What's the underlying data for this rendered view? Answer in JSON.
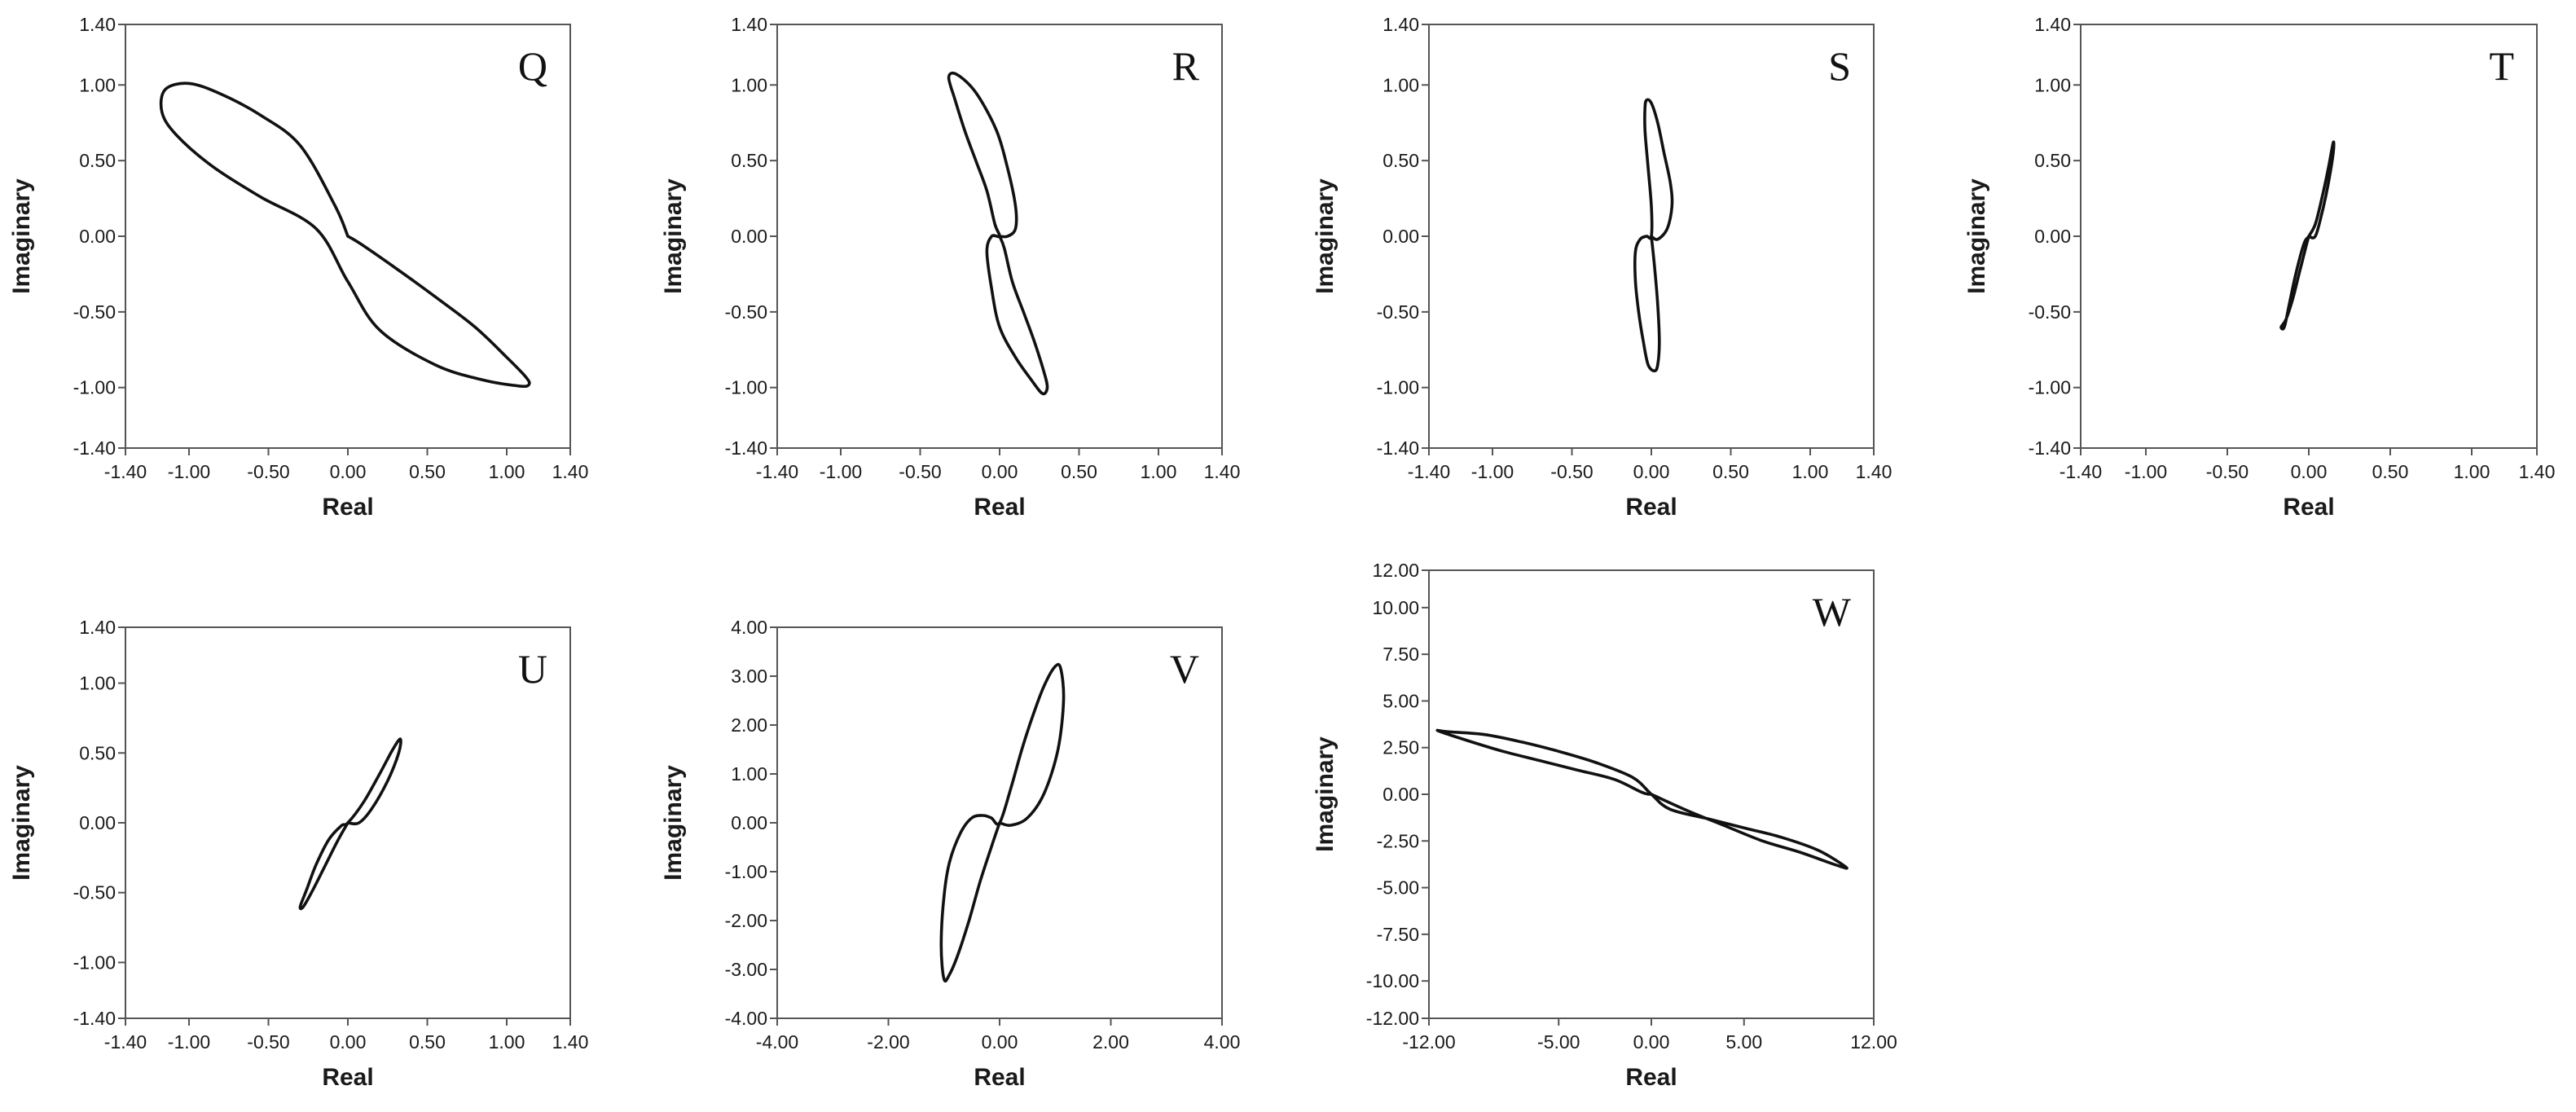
{
  "figure": {
    "colors": {
      "curve": "#111111",
      "frame": "#555555",
      "tick": "#1a1a1a",
      "background": "#ffffff"
    }
  },
  "chart_data": [
    {
      "type": "line",
      "panel": "Q",
      "title": "Q",
      "xlabel": "Real",
      "ylabel": "Imaginary",
      "xlim": [
        -1.4,
        1.4
      ],
      "ylim": [
        -1.4,
        1.4
      ],
      "xticks": [
        -1.4,
        -1.0,
        -0.5,
        0.0,
        0.5,
        1.0,
        1.4
      ],
      "xtick_labels": [
        "-1.40",
        "-1.00",
        "-0.50",
        "0.00",
        "0.50",
        "1.00",
        "1.40"
      ],
      "yticks": [
        1.4,
        1.0,
        0.5,
        0.0,
        -0.5,
        -1.0,
        -1.4
      ],
      "ytick_labels": [
        "1.40",
        "1.00",
        "0.50",
        "0.00",
        "-0.50",
        "-1.00",
        "-1.40"
      ],
      "series": [
        {
          "name": "Q",
          "x": [
            0.0,
            0.08,
            0.3,
            0.55,
            0.8,
            1.0,
            1.12,
            1.14,
            1.08,
            0.85,
            0.55,
            0.2,
            0.0,
            -0.2,
            -0.55,
            -0.85,
            -1.08,
            -1.17,
            -1.15,
            -1.0,
            -0.8,
            -0.55,
            -0.3,
            -0.08,
            0.0
          ],
          "y": [
            0.0,
            -0.05,
            -0.21,
            -0.4,
            -0.6,
            -0.8,
            -0.93,
            -0.98,
            -0.99,
            -0.95,
            -0.85,
            -0.62,
            -0.3,
            0.05,
            0.26,
            0.46,
            0.67,
            0.82,
            0.97,
            1.01,
            0.94,
            0.8,
            0.6,
            0.2,
            0.0
          ]
        }
      ]
    },
    {
      "type": "line",
      "panel": "R",
      "title": "R",
      "xlabel": "Real",
      "ylabel": "Imaginary",
      "xlim": [
        -1.4,
        1.4
      ],
      "ylim": [
        -1.4,
        1.4
      ],
      "xticks": [
        -1.4,
        -1.0,
        -0.5,
        0.0,
        0.5,
        1.0,
        1.4
      ],
      "xtick_labels": [
        "-1.40",
        "-1.00",
        "-0.50",
        "0.00",
        "0.50",
        "1.00",
        "1.40"
      ],
      "yticks": [
        1.4,
        1.0,
        0.5,
        0.0,
        -0.5,
        -1.0,
        -1.4
      ],
      "ytick_labels": [
        "1.40",
        "1.00",
        "0.50",
        "0.00",
        "-0.50",
        "-1.00",
        "-1.40"
      ],
      "series": [
        {
          "name": "R",
          "x": [
            0.0,
            0.03,
            0.08,
            0.15,
            0.22,
            0.28,
            0.3,
            0.27,
            0.2,
            0.1,
            0.0,
            -0.05,
            -0.08,
            -0.05,
            0.0,
            -0.03,
            -0.08,
            -0.15,
            -0.22,
            -0.28,
            -0.32,
            -0.27,
            -0.15,
            -0.02,
            0.05,
            0.1,
            0.1,
            0.05,
            0.0
          ],
          "y": [
            0.0,
            -0.08,
            -0.3,
            -0.5,
            -0.7,
            -0.9,
            -1.0,
            -1.04,
            -0.95,
            -0.8,
            -0.6,
            -0.35,
            -0.1,
            0.0,
            0.0,
            0.08,
            0.3,
            0.5,
            0.7,
            0.9,
            1.05,
            1.07,
            0.95,
            0.7,
            0.45,
            0.2,
            0.05,
            0.0,
            0.0
          ]
        }
      ]
    },
    {
      "type": "line",
      "panel": "S",
      "title": "S",
      "xlabel": "Real",
      "ylabel": "Imaginary",
      "xlim": [
        -1.4,
        1.4
      ],
      "ylim": [
        -1.4,
        1.4
      ],
      "xticks": [
        -1.4,
        -1.0,
        -0.5,
        0.0,
        0.5,
        1.0,
        1.4
      ],
      "xtick_labels": [
        "-1.40",
        "-1.00",
        "-0.50",
        "0.00",
        "0.50",
        "1.00",
        "1.40"
      ],
      "yticks": [
        1.4,
        1.0,
        0.5,
        0.0,
        -0.5,
        -1.0,
        -1.4
      ],
      "ytick_labels": [
        "1.40",
        "1.00",
        "0.50",
        "0.00",
        "-0.50",
        "-1.00",
        "-1.40"
      ],
      "series": [
        {
          "name": "S",
          "x": [
            0.0,
            0.02,
            0.04,
            0.05,
            0.04,
            0.02,
            -0.02,
            -0.05,
            -0.08,
            -0.1,
            -0.1,
            -0.07,
            -0.03,
            0.0,
            0.0,
            -0.02,
            -0.04,
            -0.04,
            -0.03,
            0.0,
            0.04,
            0.08,
            0.12,
            0.13,
            0.1,
            0.04,
            0.0
          ],
          "y": [
            0.0,
            -0.2,
            -0.45,
            -0.7,
            -0.85,
            -0.89,
            -0.85,
            -0.7,
            -0.5,
            -0.3,
            -0.1,
            -0.02,
            0.0,
            0.0,
            0.2,
            0.45,
            0.7,
            0.85,
            0.9,
            0.88,
            0.75,
            0.55,
            0.35,
            0.2,
            0.05,
            -0.02,
            0.0
          ]
        }
      ]
    },
    {
      "type": "line",
      "panel": "T",
      "title": "T",
      "xlabel": "Real",
      "ylabel": "Imaginary",
      "xlim": [
        -1.4,
        1.4
      ],
      "ylim": [
        -1.4,
        1.4
      ],
      "xticks": [
        -1.4,
        -1.0,
        -0.5,
        0.0,
        0.5,
        1.0,
        1.4
      ],
      "xtick_labels": [
        "-1.40",
        "-1.00",
        "-0.50",
        "0.00",
        "0.50",
        "1.00",
        "1.40"
      ],
      "yticks": [
        1.4,
        1.0,
        0.5,
        0.0,
        -0.5,
        -1.0,
        -1.4
      ],
      "ytick_labels": [
        "1.40",
        "1.00",
        "0.50",
        "0.00",
        "-0.50",
        "-1.00",
        "-1.40"
      ],
      "series": [
        {
          "name": "T",
          "x": [
            0.0,
            -0.02,
            -0.06,
            -0.1,
            -0.14,
            -0.17,
            -0.15,
            -0.12,
            -0.08,
            -0.03,
            0.0,
            0.04,
            0.08,
            0.12,
            0.15,
            0.15,
            0.12,
            0.08,
            0.04,
            0.0
          ],
          "y": [
            0.0,
            -0.08,
            -0.25,
            -0.42,
            -0.55,
            -0.6,
            -0.6,
            -0.45,
            -0.25,
            -0.05,
            0.0,
            0.08,
            0.25,
            0.45,
            0.62,
            0.55,
            0.35,
            0.15,
            0.0,
            0.0
          ]
        }
      ]
    },
    {
      "type": "line",
      "panel": "U",
      "title": "U",
      "xlabel": "Real",
      "ylabel": "Imaginary",
      "xlim": [
        -1.4,
        1.4
      ],
      "ylim": [
        -1.4,
        1.4
      ],
      "xticks": [
        -1.4,
        -1.0,
        -0.5,
        0.0,
        0.5,
        1.0,
        1.4
      ],
      "xtick_labels": [
        "-1.40",
        "-1.00",
        "-0.50",
        "0.00",
        "0.50",
        "1.00",
        "1.40"
      ],
      "yticks": [
        1.4,
        1.0,
        0.5,
        0.0,
        -0.5,
        -1.0,
        -1.4
      ],
      "ytick_labels": [
        "1.40",
        "1.00",
        "0.50",
        "0.00",
        "-0.50",
        "-1.00",
        "-1.40"
      ],
      "series": [
        {
          "name": "U",
          "x": [
            0.0,
            -0.06,
            -0.14,
            -0.22,
            -0.28,
            -0.3,
            -0.26,
            -0.2,
            -0.12,
            -0.04,
            0.0,
            0.1,
            0.2,
            0.28,
            0.33,
            0.32,
            0.25,
            0.15,
            0.07,
            0.0
          ],
          "y": [
            0.0,
            -0.12,
            -0.3,
            -0.48,
            -0.6,
            -0.6,
            -0.48,
            -0.3,
            -0.12,
            -0.02,
            0.0,
            0.15,
            0.35,
            0.52,
            0.6,
            0.5,
            0.3,
            0.1,
            0.0,
            0.0
          ]
        }
      ]
    },
    {
      "type": "line",
      "panel": "V",
      "title": "V",
      "xlabel": "Real",
      "ylabel": "Imaginary",
      "xlim": [
        -4,
        4
      ],
      "ylim": [
        -4,
        4
      ],
      "xticks": [
        -4,
        -2,
        0,
        2,
        4
      ],
      "xtick_labels": [
        "-4.00",
        "-2.00",
        "0.00",
        "2.00",
        "4.00"
      ],
      "yticks": [
        4,
        3,
        2,
        1,
        0,
        -1,
        -2,
        -3,
        -4
      ],
      "ytick_labels": [
        "4.00",
        "3.00",
        "2.00",
        "1.00",
        "0.00",
        "-1.00",
        "-2.00",
        "-3.00",
        "-4.00"
      ],
      "series": [
        {
          "name": "V",
          "x": [
            0.0,
            -0.15,
            -0.35,
            -0.55,
            -0.75,
            -0.9,
            -1.0,
            -1.05,
            -1.0,
            -0.9,
            -0.7,
            -0.5,
            -0.3,
            -0.15,
            0.0,
            0.2,
            0.4,
            0.6,
            0.8,
            1.0,
            1.1,
            1.15,
            1.05,
            0.8,
            0.5,
            0.2,
            0.0
          ],
          "y": [
            0.0,
            -0.5,
            -1.2,
            -2.0,
            -2.7,
            -3.1,
            -3.2,
            -2.5,
            -1.5,
            -0.8,
            -0.2,
            0.1,
            0.15,
            0.1,
            0.0,
            0.7,
            1.5,
            2.2,
            2.8,
            3.2,
            3.15,
            2.5,
            1.5,
            0.6,
            0.1,
            -0.05,
            0.0
          ]
        }
      ]
    },
    {
      "type": "line",
      "panel": "W",
      "title": "W",
      "xlabel": "Real",
      "ylabel": "Imaginary",
      "xlim": [
        -12,
        12
      ],
      "ylim": [
        -12,
        12
      ],
      "xticks": [
        -12,
        -5,
        0,
        5,
        12
      ],
      "xtick_labels": [
        "-12.00",
        "-5.00",
        "0.00",
        "5.00",
        "12.00"
      ],
      "yticks": [
        12,
        10,
        7.5,
        5,
        2.5,
        0,
        -2.5,
        -5,
        -7.5,
        -10,
        -12
      ],
      "ytick_labels": [
        "12.00",
        "10.00",
        "7.50",
        "5.00",
        "2.50",
        "0.00",
        "-2.50",
        "-5.00",
        "-7.50",
        "-10.00",
        "-12.00"
      ],
      "series": [
        {
          "name": "W",
          "x": [
            0.0,
            2.0,
            4.0,
            6.0,
            8.0,
            10.0,
            10.5,
            9.0,
            7.0,
            5.0,
            3.0,
            1.0,
            0.0,
            -1.0,
            -3.0,
            -5.0,
            -7.0,
            -9.0,
            -11.0,
            -11.5,
            -10.0,
            -8.0,
            -6.0,
            -4.0,
            -2.0,
            -0.5,
            0.0
          ],
          "y": [
            0.0,
            -0.9,
            -1.7,
            -2.5,
            -3.1,
            -3.8,
            -3.9,
            -3.0,
            -2.3,
            -1.8,
            -1.3,
            -0.8,
            0.0,
            0.9,
            1.7,
            2.3,
            2.8,
            3.2,
            3.35,
            3.4,
            2.9,
            2.3,
            1.8,
            1.3,
            0.8,
            0.1,
            0.0
          ]
        }
      ]
    }
  ]
}
